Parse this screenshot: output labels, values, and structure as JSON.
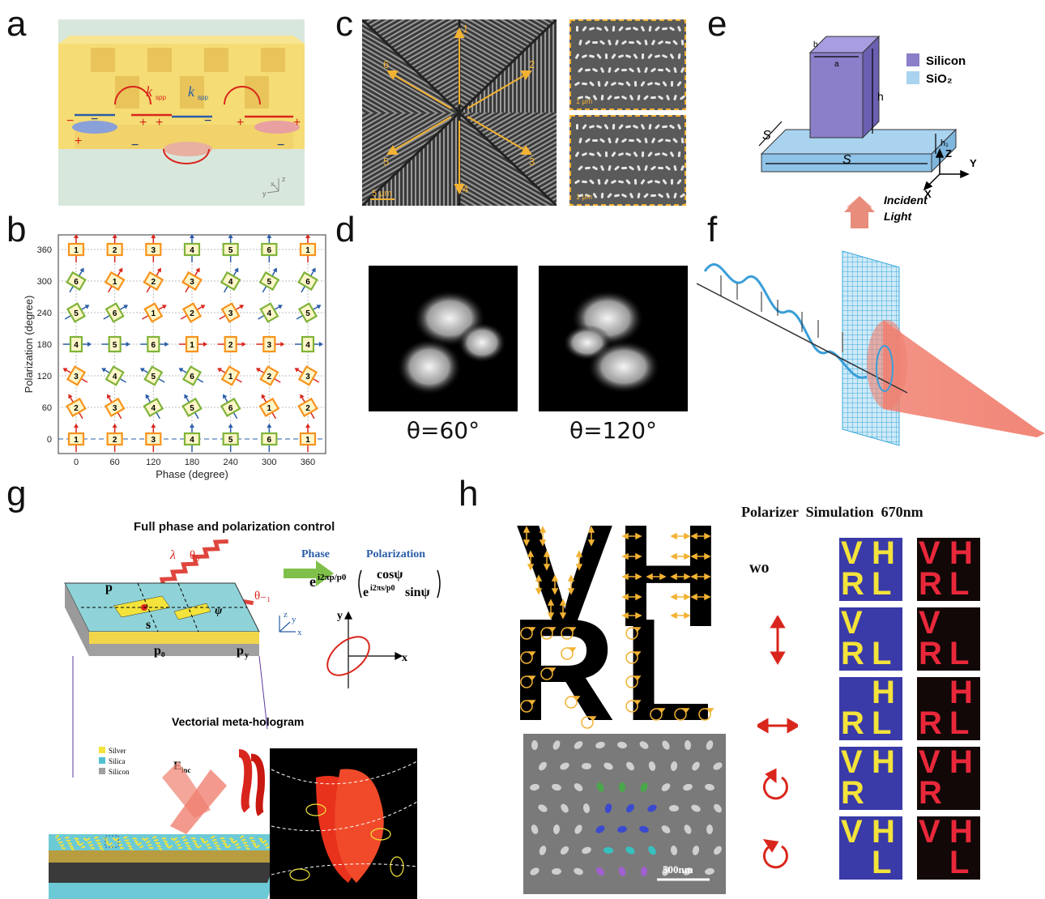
{
  "panels": {
    "a": {
      "label": "a",
      "k_red": "k",
      "k_red_sub": "spp",
      "k_blue": "k",
      "k_blue_sub": "spp",
      "axis_x": "x",
      "axis_y": "y",
      "axis_z": "z"
    },
    "b": {
      "label": "b",
      "xlabel": "Phase (degree)",
      "ylabel": "Polarization (degree)",
      "xticks": [
        "0",
        "60",
        "120",
        "180",
        "240",
        "300",
        "360"
      ],
      "yticks": [
        "0",
        "60",
        "120",
        "180",
        "240",
        "300",
        "360"
      ],
      "grid_rows": [
        [
          "1",
          "2",
          "3",
          "4",
          "5",
          "6",
          "1"
        ],
        [
          "2",
          "3",
          "4",
          "5",
          "6",
          "1",
          "2"
        ],
        [
          "3",
          "4",
          "5",
          "6",
          "1",
          "2",
          "3"
        ],
        [
          "4",
          "5",
          "6",
          "1",
          "2",
          "3",
          "4"
        ],
        [
          "5",
          "6",
          "1",
          "2",
          "3",
          "4",
          "5"
        ],
        [
          "6",
          "1",
          "2",
          "3",
          "4",
          "5",
          "6"
        ],
        [
          "1",
          "2",
          "3",
          "4",
          "5",
          "6",
          "1"
        ]
      ]
    },
    "c": {
      "label": "c",
      "arrows": [
        "1",
        "2",
        "3",
        "4",
        "5",
        "6"
      ],
      "scale_main": "5 μm",
      "scale_sub1": "1 μm",
      "scale_sub2": "1 μm"
    },
    "d": {
      "label": "d",
      "caption_left": "θ=60°",
      "caption_right": "θ=120°"
    },
    "e": {
      "label": "e",
      "legend_silicon": "Silicon",
      "legend_sio2": "SiO₂",
      "dim_a": "a",
      "dim_b": "b",
      "dim_h": "h",
      "dim_h1": "h₁",
      "dim_s1": "S",
      "dim_s2": "S",
      "ax_z": "Z",
      "ax_y": "Y",
      "ax_x": "X",
      "incident": "Incident",
      "light": "Light"
    },
    "f": {
      "label": "f"
    },
    "g": {
      "label": "g",
      "title": "Full phase and polarization control",
      "phase": "Phase",
      "polarization": "Polarization",
      "formula_prefix": "e",
      "formula_prefix_sup": "i2πp/p0",
      "formula_top": "cosψ",
      "formula_bot_pre": "e",
      "formula_bot_sup": "i2πs/p0",
      "formula_bot_post": "sinψ",
      "lambda1": "λ",
      "theta0": "θ₀",
      "lambda2": "λ",
      "theta1": "θ₋₁",
      "p": "p",
      "s": "s",
      "psi": "ψ",
      "p0": "p₀",
      "py": "p",
      "py_sub": "y",
      "ax_x": "x",
      "ax_y": "y",
      "ax_z": "z",
      "ell_x": "x",
      "ell_y": "y",
      "subtitle": "Vectorial meta-hologram",
      "legend": [
        "Silver",
        "Silica",
        "Silicon"
      ],
      "einc": "E",
      "einc_sub": "inc"
    },
    "h": {
      "label": "h",
      "letters": [
        "V",
        "H",
        "R",
        "L"
      ],
      "header": "Polarizer  Simulation  670nm",
      "row0": "wo",
      "scale": "500nm",
      "sim_rows": [
        [
          "V",
          "H",
          "R",
          "L"
        ],
        [
          "V",
          "",
          "R",
          "L"
        ],
        [
          "",
          "H",
          "R",
          "L"
        ],
        [
          "V",
          "H",
          "R",
          ""
        ],
        [
          "V",
          "H",
          "",
          "L"
        ]
      ]
    }
  },
  "colors": {
    "gold": "#f2b233",
    "orange": "#f7931e",
    "red": "#d9261c",
    "blue": "#2a5ca8",
    "yellow": "#f3e33a",
    "violet": "#3a3aa8",
    "silicon": "#8a7fc8",
    "sio2": "#a9d3ef"
  }
}
